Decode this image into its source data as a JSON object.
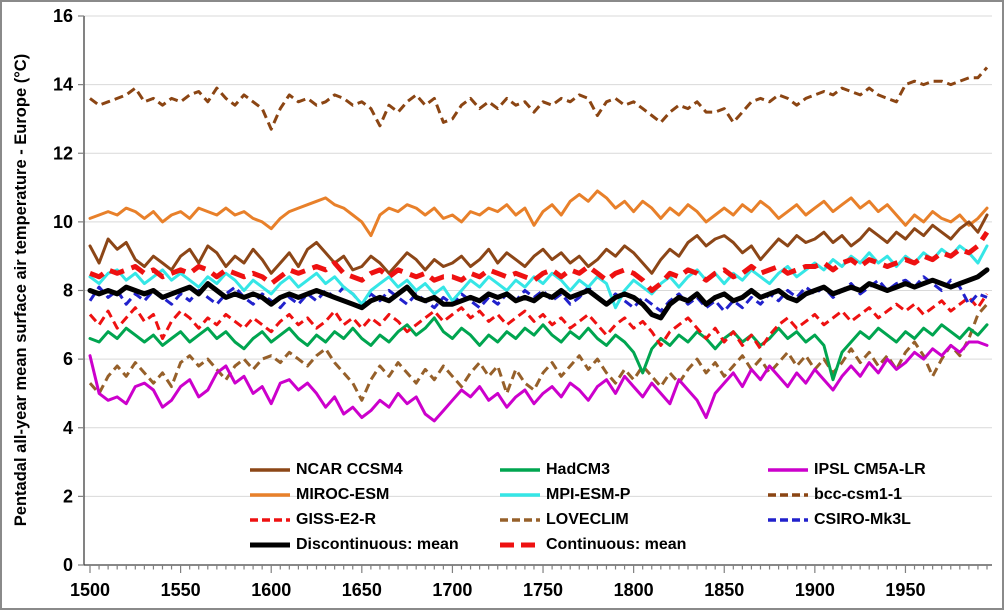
{
  "chart_data": {
    "type": "line",
    "title": "",
    "xlabel": "",
    "ylabel": "Pentadal all-year mean surface air temperature - Europe (°C)",
    "ylim": [
      0,
      16
    ],
    "x_start": 1500,
    "x_step": 5,
    "x_end": 1995,
    "grid": "horizontal-light-gray",
    "legend_position": "inside-bottom-3-columns",
    "y_ticks": [
      "0",
      "2",
      "4",
      "6",
      "8",
      "10",
      "12",
      "14",
      "16"
    ],
    "x_ticks": [
      "1500",
      "1550",
      "1600",
      "1650",
      "1700",
      "1750",
      "1800",
      "1850",
      "1900",
      "1950"
    ],
    "draw_order": [
      5,
      3,
      0,
      7,
      2,
      1,
      6,
      8,
      4,
      10,
      9
    ],
    "series": [
      {
        "name": "NCAR CCSM4",
        "color": "#8C4617",
        "dash": "none",
        "width": 3,
        "values": [
          9.3,
          8.8,
          9.5,
          9.2,
          9.4,
          8.9,
          8.7,
          9.0,
          8.8,
          8.6,
          9.0,
          9.2,
          8.8,
          9.3,
          9.1,
          8.7,
          9.0,
          8.8,
          9.2,
          8.9,
          8.5,
          8.8,
          9.1,
          8.7,
          9.2,
          9.4,
          9.1,
          8.8,
          9.0,
          8.6,
          8.7,
          9.0,
          8.8,
          8.5,
          8.8,
          9.1,
          8.9,
          8.6,
          8.9,
          8.7,
          8.8,
          9.0,
          8.7,
          8.9,
          9.2,
          8.8,
          9.1,
          8.9,
          8.7,
          9.0,
          9.2,
          8.9,
          9.1,
          8.8,
          9.0,
          8.7,
          8.9,
          9.2,
          9.0,
          9.3,
          9.1,
          8.8,
          8.5,
          8.9,
          9.2,
          9.0,
          9.4,
          9.6,
          9.3,
          9.5,
          9.6,
          9.4,
          9.1,
          9.3,
          8.9,
          9.2,
          9.5,
          9.3,
          9.6,
          9.4,
          9.5,
          9.7,
          9.4,
          9.6,
          9.3,
          9.5,
          9.8,
          9.6,
          9.4,
          9.7,
          9.5,
          9.8,
          9.6,
          9.9,
          9.7,
          9.5,
          9.8,
          10.0,
          9.7,
          10.2
        ]
      },
      {
        "name": "HadCM3",
        "color": "#00A550",
        "dash": "none",
        "width": 3,
        "values": [
          6.6,
          6.5,
          6.8,
          6.6,
          6.9,
          6.7,
          6.5,
          6.7,
          6.4,
          6.6,
          6.8,
          6.5,
          6.7,
          6.9,
          6.6,
          6.8,
          6.5,
          6.3,
          6.6,
          6.8,
          6.5,
          6.7,
          6.9,
          6.6,
          6.4,
          6.7,
          6.5,
          6.8,
          6.6,
          6.9,
          6.6,
          6.4,
          6.7,
          6.5,
          6.8,
          7.0,
          6.7,
          6.9,
          7.2,
          6.8,
          6.6,
          6.9,
          6.7,
          6.4,
          6.7,
          6.5,
          6.8,
          6.6,
          6.9,
          6.7,
          7.0,
          6.7,
          6.5,
          6.8,
          6.6,
          6.9,
          6.6,
          6.4,
          6.7,
          6.5,
          6.2,
          5.6,
          6.3,
          6.6,
          6.4,
          6.7,
          6.5,
          6.8,
          6.6,
          6.3,
          6.6,
          6.8,
          6.5,
          6.7,
          6.4,
          6.6,
          6.9,
          6.6,
          6.8,
          6.5,
          6.7,
          6.4,
          5.4,
          6.2,
          6.5,
          6.8,
          6.6,
          6.9,
          6.7,
          6.5,
          6.8,
          6.6,
          6.9,
          6.7,
          7.0,
          6.8,
          6.6,
          6.9,
          6.7,
          7.0
        ]
      },
      {
        "name": "IPSL CM5A-LR",
        "color": "#CC00CC",
        "dash": "none",
        "width": 3,
        "values": [
          6.1,
          5.0,
          4.8,
          4.9,
          4.7,
          5.2,
          5.3,
          5.1,
          4.6,
          4.8,
          5.2,
          5.4,
          4.9,
          5.1,
          5.6,
          5.8,
          5.3,
          5.5,
          5.0,
          5.2,
          4.7,
          5.3,
          5.4,
          5.1,
          5.3,
          5.0,
          4.6,
          4.9,
          4.4,
          4.6,
          4.3,
          4.5,
          4.8,
          4.6,
          5.0,
          4.7,
          4.9,
          4.4,
          4.2,
          4.5,
          4.8,
          5.1,
          4.9,
          5.2,
          4.8,
          5.0,
          4.6,
          4.9,
          5.1,
          4.7,
          5.0,
          5.2,
          4.9,
          5.3,
          5.1,
          4.8,
          5.2,
          5.4,
          5.0,
          5.5,
          5.2,
          4.9,
          5.3,
          5.0,
          4.7,
          5.4,
          5.1,
          4.8,
          4.3,
          5.0,
          5.3,
          5.6,
          5.2,
          5.7,
          5.4,
          5.8,
          5.5,
          5.2,
          5.6,
          5.3,
          5.7,
          5.4,
          5.1,
          5.5,
          5.8,
          5.5,
          5.9,
          5.6,
          6.0,
          5.7,
          5.9,
          6.2,
          6.0,
          6.3,
          6.1,
          6.4,
          6.2,
          6.5,
          6.5,
          6.4
        ]
      },
      {
        "name": "MIROC-ESM",
        "color": "#E8802A",
        "dash": "none",
        "width": 3,
        "values": [
          10.1,
          10.2,
          10.3,
          10.2,
          10.4,
          10.3,
          10.1,
          10.3,
          10.0,
          10.2,
          10.3,
          10.1,
          10.4,
          10.3,
          10.2,
          10.4,
          10.2,
          10.3,
          10.1,
          10.0,
          9.8,
          10.1,
          10.3,
          10.4,
          10.5,
          10.6,
          10.7,
          10.5,
          10.4,
          10.2,
          10.0,
          9.6,
          10.2,
          10.4,
          10.3,
          10.5,
          10.4,
          10.2,
          10.4,
          10.1,
          10.2,
          10.0,
          10.3,
          10.2,
          10.4,
          10.3,
          10.5,
          10.2,
          10.4,
          9.9,
          10.3,
          10.5,
          10.2,
          10.6,
          10.8,
          10.6,
          10.9,
          10.7,
          10.4,
          10.6,
          10.3,
          10.6,
          10.4,
          10.1,
          10.4,
          10.2,
          10.5,
          10.3,
          10.0,
          10.2,
          10.4,
          10.2,
          10.5,
          10.3,
          10.6,
          10.4,
          10.1,
          10.3,
          10.5,
          10.2,
          10.4,
          10.6,
          10.3,
          10.5,
          10.7,
          10.4,
          10.6,
          10.3,
          10.5,
          10.2,
          9.9,
          10.2,
          10.0,
          10.3,
          10.1,
          10.0,
          10.2,
          9.9,
          10.1,
          10.4
        ]
      },
      {
        "name": "MPI-ESM-P",
        "color": "#35E6E6",
        "dash": "none",
        "width": 3,
        "values": [
          8.4,
          8.2,
          8.5,
          8.6,
          8.3,
          8.5,
          8.2,
          8.4,
          8.6,
          8.3,
          8.5,
          8.3,
          8.1,
          8.4,
          8.2,
          8.5,
          8.3,
          8.0,
          8.3,
          8.1,
          7.9,
          8.2,
          8.4,
          8.1,
          8.3,
          8.5,
          8.2,
          8.4,
          8.1,
          7.9,
          7.6,
          8.0,
          8.2,
          8.4,
          8.1,
          8.3,
          8.0,
          8.2,
          7.9,
          8.1,
          7.7,
          8.0,
          8.3,
          8.1,
          8.4,
          8.2,
          8.0,
          8.3,
          8.1,
          8.4,
          8.2,
          8.5,
          8.3,
          8.0,
          8.3,
          8.1,
          8.4,
          8.2,
          7.5,
          8.0,
          8.3,
          8.1,
          7.9,
          8.2,
          8.4,
          8.1,
          8.4,
          8.6,
          8.3,
          8.5,
          8.2,
          8.5,
          8.3,
          8.6,
          8.4,
          8.2,
          8.5,
          8.7,
          8.4,
          8.6,
          8.8,
          8.6,
          8.9,
          8.7,
          9.0,
          8.8,
          9.1,
          8.8,
          9.0,
          8.7,
          9.0,
          8.8,
          9.1,
          8.9,
          9.2,
          9.0,
          9.3,
          9.1,
          8.8,
          9.3
        ]
      },
      {
        "name": "bcc-csm1-1",
        "color": "#8B4513",
        "dash": "dash",
        "width": 3,
        "values": [
          13.6,
          13.4,
          13.5,
          13.6,
          13.7,
          13.9,
          13.5,
          13.6,
          13.4,
          13.6,
          13.5,
          13.7,
          13.8,
          13.5,
          13.9,
          13.6,
          13.4,
          13.7,
          13.5,
          13.3,
          12.7,
          13.3,
          13.7,
          13.5,
          13.6,
          13.4,
          13.5,
          13.7,
          13.6,
          13.4,
          13.5,
          13.3,
          12.8,
          13.4,
          13.2,
          13.5,
          13.7,
          13.4,
          13.6,
          12.9,
          13.0,
          13.4,
          13.6,
          13.3,
          13.5,
          13.3,
          13.6,
          13.4,
          13.5,
          13.2,
          13.5,
          13.4,
          13.6,
          13.5,
          13.7,
          13.6,
          13.1,
          13.5,
          13.6,
          13.4,
          13.5,
          13.3,
          13.1,
          12.9,
          13.2,
          13.4,
          13.3,
          13.5,
          13.2,
          13.2,
          13.3,
          12.9,
          13.2,
          13.5,
          13.6,
          13.5,
          13.7,
          13.6,
          13.4,
          13.6,
          13.7,
          13.8,
          13.7,
          13.9,
          13.8,
          13.7,
          13.9,
          13.7,
          13.6,
          13.5,
          14.0,
          14.1,
          14.0,
          14.1,
          14.1,
          14.0,
          14.1,
          14.2,
          14.2,
          14.5
        ]
      },
      {
        "name": "GISS-E2-R",
        "color": "#EE1111",
        "dash": "dash",
        "width": 3,
        "values": [
          7.3,
          7.0,
          7.4,
          6.9,
          7.2,
          7.5,
          7.1,
          7.3,
          6.6,
          7.1,
          7.4,
          7.2,
          6.9,
          7.2,
          7.0,
          7.3,
          7.1,
          6.9,
          7.2,
          7.0,
          6.8,
          7.1,
          7.3,
          7.0,
          7.2,
          6.9,
          7.1,
          7.4,
          7.0,
          7.2,
          6.9,
          7.2,
          7.0,
          7.3,
          7.1,
          6.8,
          7.0,
          7.2,
          7.4,
          7.1,
          7.3,
          7.5,
          7.2,
          7.4,
          7.1,
          7.3,
          7.0,
          7.2,
          7.4,
          7.1,
          7.3,
          7.0,
          7.2,
          6.9,
          7.1,
          7.3,
          7.0,
          6.7,
          7.0,
          7.2,
          6.9,
          7.1,
          6.8,
          6.4,
          6.8,
          7.0,
          7.2,
          6.9,
          6.6,
          6.9,
          6.5,
          6.8,
          6.4,
          6.7,
          6.3,
          6.7,
          7.0,
          7.2,
          6.9,
          7.1,
          7.3,
          7.0,
          7.2,
          7.4,
          7.1,
          7.3,
          7.5,
          7.2,
          7.4,
          7.6,
          7.4,
          7.6,
          7.3,
          7.5,
          7.7,
          7.4,
          7.6,
          7.8,
          7.5,
          7.9
        ]
      },
      {
        "name": "LOVECLIM",
        "color": "#96602A",
        "dash": "dash",
        "width": 3,
        "values": [
          5.3,
          5.0,
          5.5,
          5.8,
          5.5,
          5.9,
          5.6,
          5.3,
          5.6,
          5.2,
          5.9,
          6.1,
          5.8,
          6.0,
          5.7,
          5.4,
          5.8,
          6.0,
          5.7,
          6.0,
          6.1,
          5.9,
          6.2,
          6.0,
          5.8,
          6.1,
          6.3,
          5.9,
          5.6,
          5.3,
          4.8,
          5.4,
          5.8,
          5.5,
          5.9,
          5.6,
          5.3,
          5.7,
          5.4,
          5.8,
          5.5,
          5.2,
          5.6,
          5.9,
          5.5,
          5.8,
          5.0,
          5.7,
          5.3,
          5.1,
          5.6,
          5.9,
          5.5,
          5.8,
          6.1,
          5.7,
          6.0,
          5.6,
          5.3,
          5.7,
          5.4,
          5.8,
          5.5,
          5.2,
          5.6,
          5.3,
          5.7,
          6.0,
          5.6,
          5.9,
          5.5,
          5.8,
          6.1,
          5.7,
          6.0,
          5.6,
          5.9,
          6.2,
          5.8,
          6.1,
          5.7,
          6.0,
          5.6,
          5.9,
          6.3,
          5.9,
          6.2,
          5.8,
          6.1,
          5.7,
          6.2,
          6.5,
          6.1,
          5.5,
          6.0,
          6.4,
          6.1,
          6.6,
          7.3,
          7.6
        ]
      },
      {
        "name": "CSIRO-Mk3L",
        "color": "#2121CC",
        "dash": "dash",
        "width": 3,
        "values": [
          7.7,
          8.1,
          7.8,
          8.0,
          7.6,
          7.9,
          7.7,
          8.0,
          7.8,
          7.6,
          7.9,
          7.7,
          8.0,
          7.8,
          7.6,
          7.9,
          8.1,
          7.8,
          7.6,
          7.9,
          7.7,
          7.5,
          7.8,
          7.6,
          7.9,
          7.7,
          8.0,
          7.8,
          8.1,
          7.9,
          7.6,
          7.9,
          7.7,
          8.0,
          7.8,
          7.6,
          7.9,
          7.7,
          7.5,
          7.8,
          7.6,
          7.9,
          7.7,
          7.5,
          7.8,
          7.6,
          7.9,
          7.7,
          8.0,
          7.8,
          8.0,
          7.7,
          7.9,
          7.6,
          7.8,
          8.1,
          7.8,
          7.6,
          7.9,
          7.7,
          7.5,
          7.8,
          7.6,
          7.4,
          7.7,
          7.9,
          7.6,
          7.8,
          7.5,
          7.7,
          7.4,
          7.7,
          7.5,
          7.8,
          7.6,
          7.9,
          7.7,
          8.0,
          7.8,
          8.1,
          7.9,
          8.1,
          7.8,
          8.0,
          8.2,
          7.9,
          8.1,
          8.3,
          8.0,
          8.2,
          8.3,
          8.1,
          8.4,
          8.2,
          8.0,
          8.3,
          8.1,
          7.6,
          7.9,
          7.8
        ]
      },
      {
        "name": "Discontinuous: mean",
        "color": "#000000",
        "dash": "none",
        "width": 5,
        "values": [
          8.0,
          7.9,
          8.0,
          7.9,
          8.1,
          8.0,
          7.9,
          8.0,
          7.8,
          7.9,
          8.0,
          8.1,
          7.9,
          8.2,
          8.0,
          7.8,
          7.9,
          7.8,
          7.9,
          7.8,
          7.6,
          7.8,
          7.9,
          7.8,
          7.9,
          8.0,
          7.9,
          7.8,
          7.7,
          7.6,
          7.5,
          7.7,
          7.8,
          7.7,
          7.9,
          8.1,
          7.8,
          7.7,
          7.8,
          7.6,
          7.6,
          7.7,
          7.8,
          7.7,
          7.9,
          7.8,
          7.9,
          7.7,
          7.8,
          7.7,
          7.9,
          7.8,
          8.0,
          7.8,
          7.9,
          8.0,
          7.8,
          7.6,
          7.8,
          7.9,
          7.8,
          7.6,
          7.3,
          7.2,
          7.6,
          7.8,
          7.7,
          7.9,
          7.6,
          7.8,
          7.9,
          7.7,
          7.8,
          8.0,
          7.8,
          7.9,
          8.0,
          7.8,
          7.7,
          7.9,
          8.0,
          8.1,
          7.9,
          8.0,
          8.1,
          8.0,
          8.2,
          8.1,
          8.0,
          8.1,
          8.2,
          8.1,
          8.2,
          8.3,
          8.2,
          8.1,
          8.2,
          8.3,
          8.4,
          8.6
        ]
      },
      {
        "name": "Continuous: mean",
        "color": "#EE1111",
        "dash": "longdash",
        "width": 5,
        "values": [
          8.5,
          8.4,
          8.6,
          8.5,
          8.6,
          8.7,
          8.5,
          8.6,
          8.4,
          8.5,
          8.6,
          8.5,
          8.7,
          8.6,
          8.4,
          8.6,
          8.5,
          8.4,
          8.5,
          8.4,
          8.2,
          8.4,
          8.6,
          8.5,
          8.6,
          8.7,
          8.6,
          8.8,
          8.5,
          8.4,
          8.3,
          8.5,
          8.6,
          8.4,
          8.6,
          8.5,
          8.4,
          8.5,
          8.3,
          8.4,
          8.4,
          8.3,
          8.5,
          8.4,
          8.6,
          8.5,
          8.4,
          8.5,
          8.4,
          8.3,
          8.5,
          8.6,
          8.4,
          8.6,
          8.5,
          8.7,
          8.5,
          8.3,
          8.5,
          8.6,
          8.5,
          8.3,
          8.0,
          8.2,
          8.5,
          8.4,
          8.6,
          8.5,
          8.3,
          8.5,
          8.6,
          8.4,
          8.5,
          8.7,
          8.5,
          8.6,
          8.7,
          8.5,
          8.6,
          8.7,
          8.7,
          8.8,
          8.6,
          8.8,
          8.9,
          8.7,
          8.9,
          8.8,
          8.7,
          8.8,
          8.9,
          8.8,
          9.0,
          8.9,
          9.1,
          9.0,
          9.2,
          9.1,
          9.3,
          9.7
        ]
      }
    ]
  },
  "style": {
    "grid_color": "#D9D9D9",
    "axis_color": "#404040",
    "tick_color": "#808080",
    "text_color": "#000000",
    "background": "#FFFFFF"
  }
}
